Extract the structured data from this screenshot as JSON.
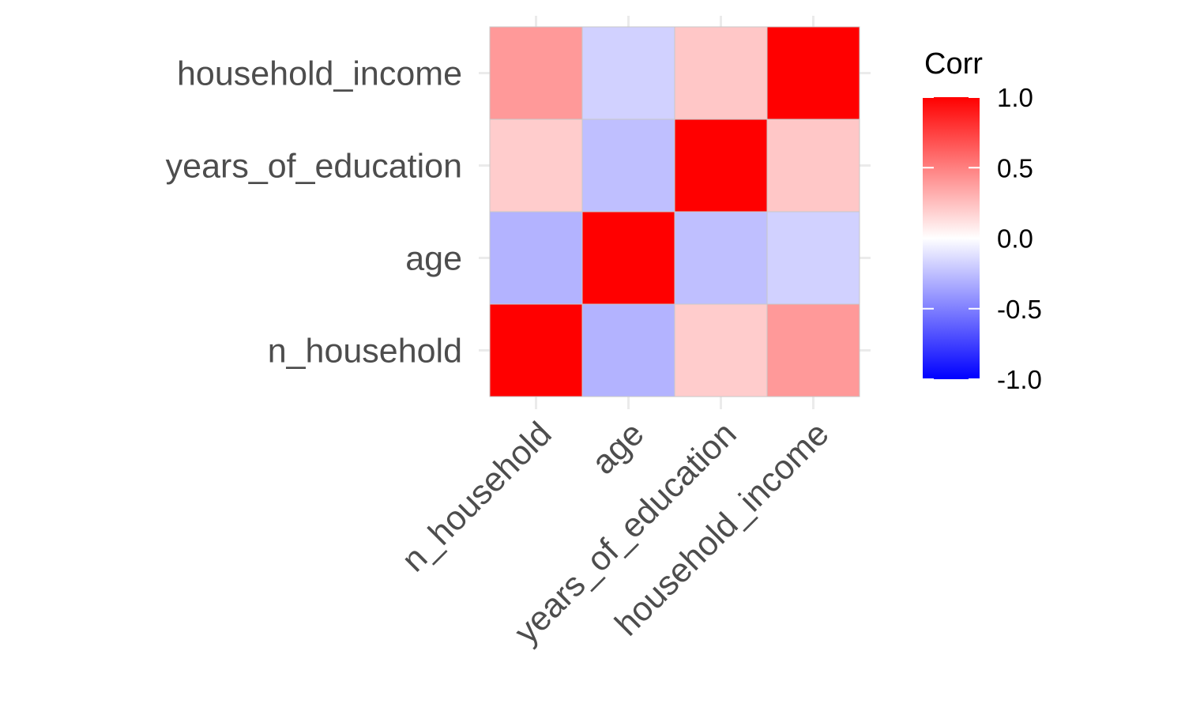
{
  "chart_data": {
    "type": "heatmap",
    "title": "",
    "xlabel": "",
    "ylabel": "",
    "x_categories": [
      "n_household",
      "age",
      "years_of_education",
      "household_income"
    ],
    "y_categories": [
      "n_household",
      "age",
      "years_of_education",
      "household_income"
    ],
    "values": [
      [
        1.0,
        -0.3,
        0.2,
        0.4
      ],
      [
        -0.3,
        1.0,
        -0.25,
        -0.18
      ],
      [
        0.2,
        -0.25,
        1.0,
        0.22
      ],
      [
        0.4,
        -0.18,
        0.22,
        1.0
      ]
    ],
    "legend": {
      "title": "Corr",
      "placement": "right",
      "ticks": [
        1.0,
        0.5,
        0.0,
        -0.5,
        -1.0
      ],
      "tick_labels": [
        "1.0",
        "0.5",
        "0.0",
        "-0.5",
        "-1.0"
      ],
      "range": [
        -1,
        1
      ]
    },
    "colors": {
      "low": "#0000ff",
      "mid": "#ffffff",
      "high": "#ff0000",
      "grid": "#ebebeb",
      "tile_border": "#c8c8c8"
    },
    "grid": true
  }
}
